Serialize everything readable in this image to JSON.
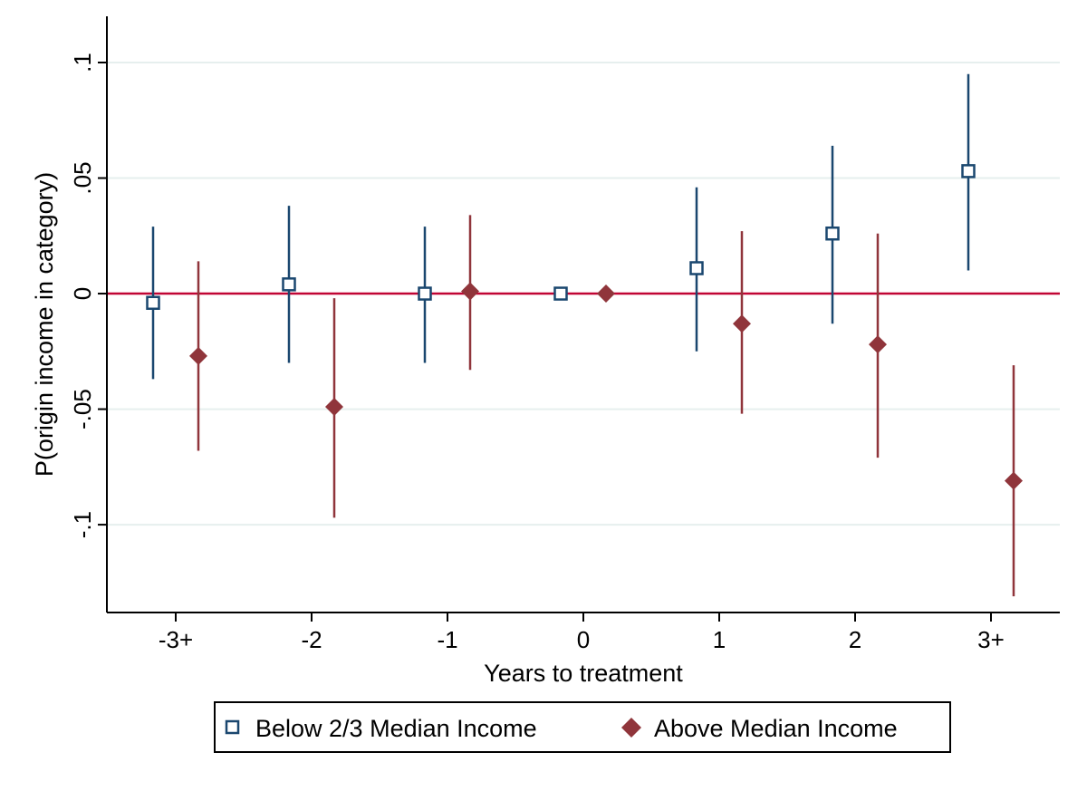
{
  "chart_data": {
    "type": "scatter",
    "title": "",
    "xlabel": "Years to treatment",
    "ylabel": "P(origin income in category)",
    "categories": [
      "-3+",
      "-2",
      "-1",
      "0",
      "1",
      "2",
      "3+"
    ],
    "y_ticks": [
      {
        "value": -0.1,
        "label": "-.1"
      },
      {
        "value": -0.05,
        "label": "-.05"
      },
      {
        "value": 0,
        "label": "0"
      },
      {
        "value": 0.05,
        "label": ".05"
      },
      {
        "value": 0.1,
        "label": ".1"
      }
    ],
    "ylim": [
      -0.138,
      0.12
    ],
    "grid": true,
    "reference_line": 0,
    "legend_position": "bottom",
    "series": [
      {
        "name": "Below 2/3 Median Income",
        "marker": "hollow-square",
        "color": "#1a476f",
        "points": [
          {
            "category": "-3+",
            "y": -0.004,
            "ci_low": -0.037,
            "ci_high": 0.029
          },
          {
            "category": "-2",
            "y": 0.004,
            "ci_low": -0.03,
            "ci_high": 0.038
          },
          {
            "category": "-1",
            "y": 0.0,
            "ci_low": -0.03,
            "ci_high": 0.029
          },
          {
            "category": "0",
            "y": 0.0,
            "ci_low": 0.0,
            "ci_high": 0.0
          },
          {
            "category": "1",
            "y": 0.011,
            "ci_low": -0.025,
            "ci_high": 0.046
          },
          {
            "category": "2",
            "y": 0.026,
            "ci_low": -0.013,
            "ci_high": 0.064
          },
          {
            "category": "3+",
            "y": 0.053,
            "ci_low": 0.01,
            "ci_high": 0.095
          }
        ]
      },
      {
        "name": "Above Median Income",
        "marker": "filled-diamond",
        "color": "#90353b",
        "points": [
          {
            "category": "-3+",
            "y": -0.027,
            "ci_low": -0.068,
            "ci_high": 0.014
          },
          {
            "category": "-2",
            "y": -0.049,
            "ci_low": -0.097,
            "ci_high": -0.002
          },
          {
            "category": "-1",
            "y": 0.001,
            "ci_low": -0.033,
            "ci_high": 0.034
          },
          {
            "category": "0",
            "y": 0.0,
            "ci_low": 0.0,
            "ci_high": 0.0
          },
          {
            "category": "1",
            "y": -0.013,
            "ci_low": -0.052,
            "ci_high": 0.027
          },
          {
            "category": "2",
            "y": -0.022,
            "ci_low": -0.071,
            "ci_high": 0.026
          },
          {
            "category": "3+",
            "y": -0.081,
            "ci_low": -0.131,
            "ci_high": -0.031
          }
        ]
      }
    ],
    "colors": {
      "grid": "#e6efee",
      "zero_line": "#c10534",
      "axis": "#000000"
    }
  }
}
